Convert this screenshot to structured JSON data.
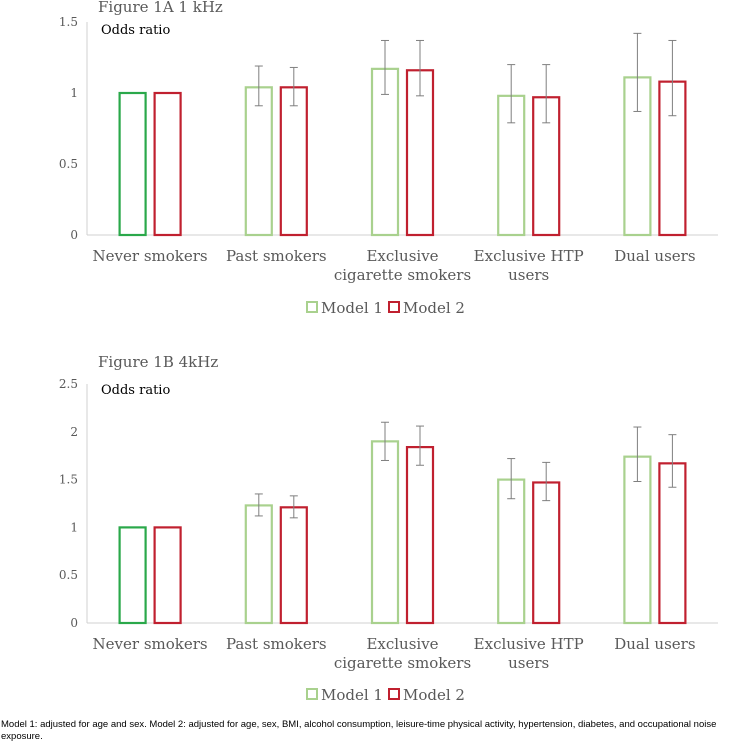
{
  "chart_data": [
    {
      "type": "bar",
      "title": "Figure 1A 1 kHz",
      "ylabel": "Odds ratio",
      "xlabel": "",
      "ylim": [
        0,
        1.5
      ],
      "yticks": [
        0,
        0.5,
        1,
        1.5
      ],
      "ytick_labels": [
        "0",
        "0.5",
        "1",
        "1.5"
      ],
      "grid": false,
      "legend": "bottom-center",
      "categories": [
        "Never smokers",
        "Past smokers",
        "Exclusive cigarette smokers",
        "Exclusive HTP users",
        "Dual users"
      ],
      "category_lines": [
        [
          "Never smokers"
        ],
        [
          "Past smokers"
        ],
        [
          "Exclusive",
          "cigarette smokers"
        ],
        [
          "Exclusive HTP",
          "users"
        ],
        [
          "Dual users"
        ]
      ],
      "series": [
        {
          "name": "Model 1",
          "color": "#a9d18e",
          "values": [
            1.0,
            1.04,
            1.17,
            0.98,
            1.11
          ],
          "err_low": [
            null,
            0.91,
            0.99,
            0.79,
            0.87
          ],
          "err_high": [
            null,
            1.19,
            1.37,
            1.2,
            1.42
          ]
        },
        {
          "name": "Model 2",
          "color": "#c0202f",
          "values": [
            1.0,
            1.04,
            1.16,
            0.97,
            1.08
          ],
          "err_low": [
            null,
            0.91,
            0.98,
            0.79,
            0.84
          ],
          "err_high": [
            null,
            1.18,
            1.37,
            1.2,
            1.37
          ]
        }
      ],
      "reference_color": "#2aa84a"
    },
    {
      "type": "bar",
      "title": "Figure 1B 4kHz",
      "ylabel": "Odds ratio",
      "xlabel": "",
      "ylim": [
        0,
        2.5
      ],
      "yticks": [
        0,
        0.5,
        1,
        1.5,
        2,
        2.5
      ],
      "ytick_labels": [
        "0",
        "0.5",
        "1",
        "1.5",
        "2",
        "2.5"
      ],
      "grid": false,
      "legend": "bottom-center",
      "categories": [
        "Never smokers",
        "Past smokers",
        "Exclusive cigarette smokers",
        "Exclusive HTP users",
        "Dual users"
      ],
      "category_lines": [
        [
          "Never smokers"
        ],
        [
          "Past smokers"
        ],
        [
          "Exclusive",
          "cigarette smokers"
        ],
        [
          "Exclusive HTP",
          "users"
        ],
        [
          "Dual users"
        ]
      ],
      "series": [
        {
          "name": "Model 1",
          "color": "#a9d18e",
          "values": [
            1.0,
            1.23,
            1.9,
            1.5,
            1.74
          ],
          "err_low": [
            null,
            1.12,
            1.7,
            1.3,
            1.48
          ],
          "err_high": [
            null,
            1.35,
            2.1,
            1.72,
            2.05
          ]
        },
        {
          "name": "Model 2",
          "color": "#c0202f",
          "values": [
            1.0,
            1.21,
            1.84,
            1.47,
            1.67
          ],
          "err_low": [
            null,
            1.1,
            1.65,
            1.28,
            1.42
          ],
          "err_high": [
            null,
            1.33,
            2.06,
            1.68,
            1.97
          ]
        }
      ],
      "reference_color": "#2aa84a"
    }
  ],
  "footnote": "Model 1: adjusted for age and sex. Model 2: adjusted for age, sex, BMI, alcohol consumption, leisure-time physical activity, hypertension, diabetes, and occupational noise exposure."
}
